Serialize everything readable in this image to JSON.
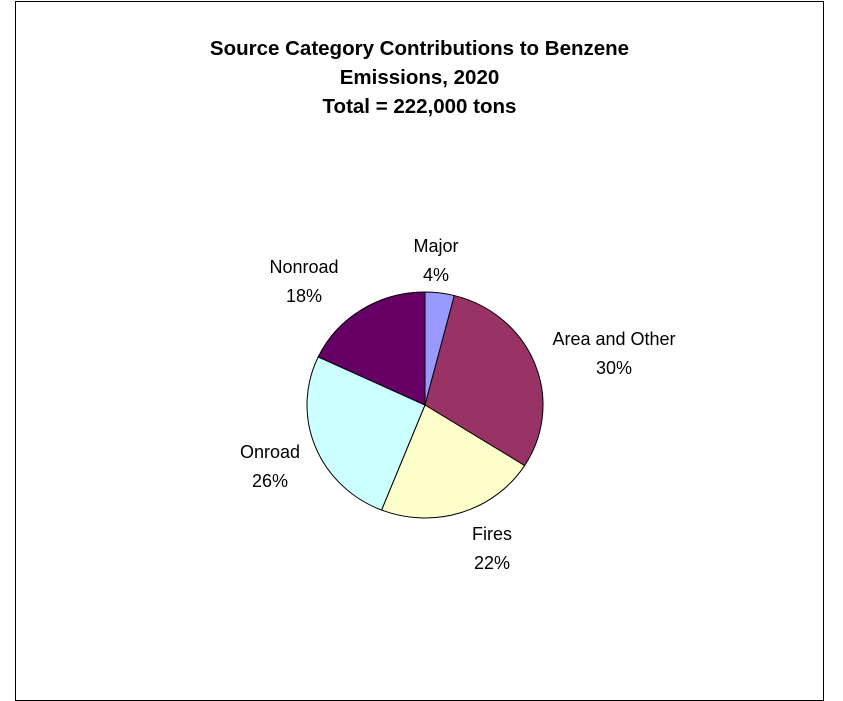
{
  "chart_data": {
    "type": "pie",
    "title_lines": [
      "Source Category Contributions to Benzene",
      "Emissions, 2020",
      "Total = 222,000 tons"
    ],
    "slices": [
      {
        "label": "Major",
        "pct_label": "4%",
        "value": 4,
        "color": "#9999ff"
      },
      {
        "label": "Area and Other",
        "pct_label": "30%",
        "value": 30,
        "color": "#993366"
      },
      {
        "label": "Fires",
        "pct_label": "22%",
        "value": 22,
        "color": "#ffffcc"
      },
      {
        "label": "Onroad",
        "pct_label": "26%",
        "value": 26,
        "color": "#ccffff"
      },
      {
        "label": "Nonroad",
        "pct_label": "18%",
        "value": 18,
        "color": "#660066"
      }
    ]
  }
}
